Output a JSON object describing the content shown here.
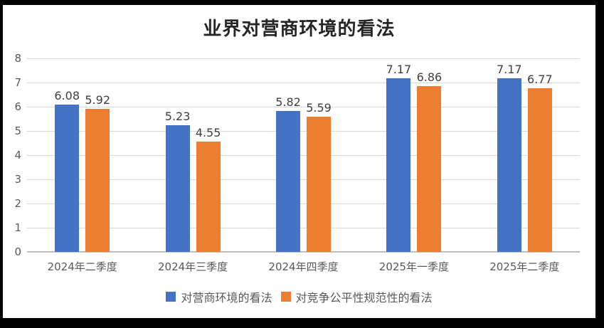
{
  "chart_data": {
    "type": "bar",
    "title": "业界对营商环境的看法",
    "categories": [
      "2024年二季度",
      "2024年三季度",
      "2024年四季度",
      "2025年一季度",
      "2025年二季度"
    ],
    "series": [
      {
        "name": "对营商环境的看法",
        "color": "#4472C4",
        "values": [
          6.08,
          5.23,
          5.82,
          7.17,
          7.17
        ]
      },
      {
        "name": "对竞争公平性规范性的看法",
        "color": "#ED7D31",
        "values": [
          5.92,
          4.55,
          5.59,
          6.86,
          6.77
        ]
      }
    ],
    "data_labels": [
      [
        "6.08",
        "5.23",
        "5.82",
        "7.17",
        "7.17"
      ],
      [
        "5.92",
        "4.55",
        "5.59",
        "6.86",
        "6.77"
      ]
    ],
    "ylim": [
      0,
      8
    ],
    "ytick_step": 1,
    "ytick_labels": [
      "0",
      "1",
      "2",
      "3",
      "4",
      "5",
      "6",
      "7",
      "8"
    ],
    "xlabel": "",
    "ylabel": "",
    "grid": true,
    "legend_position": "bottom",
    "colors": {
      "gridline": "#d9d9d9",
      "axis_line": "#bfbfbf",
      "tick_text": "#595959",
      "data_label_text": "#404040",
      "title_text": "#262626",
      "background": "#ffffff",
      "frame_border": "#000000"
    }
  }
}
